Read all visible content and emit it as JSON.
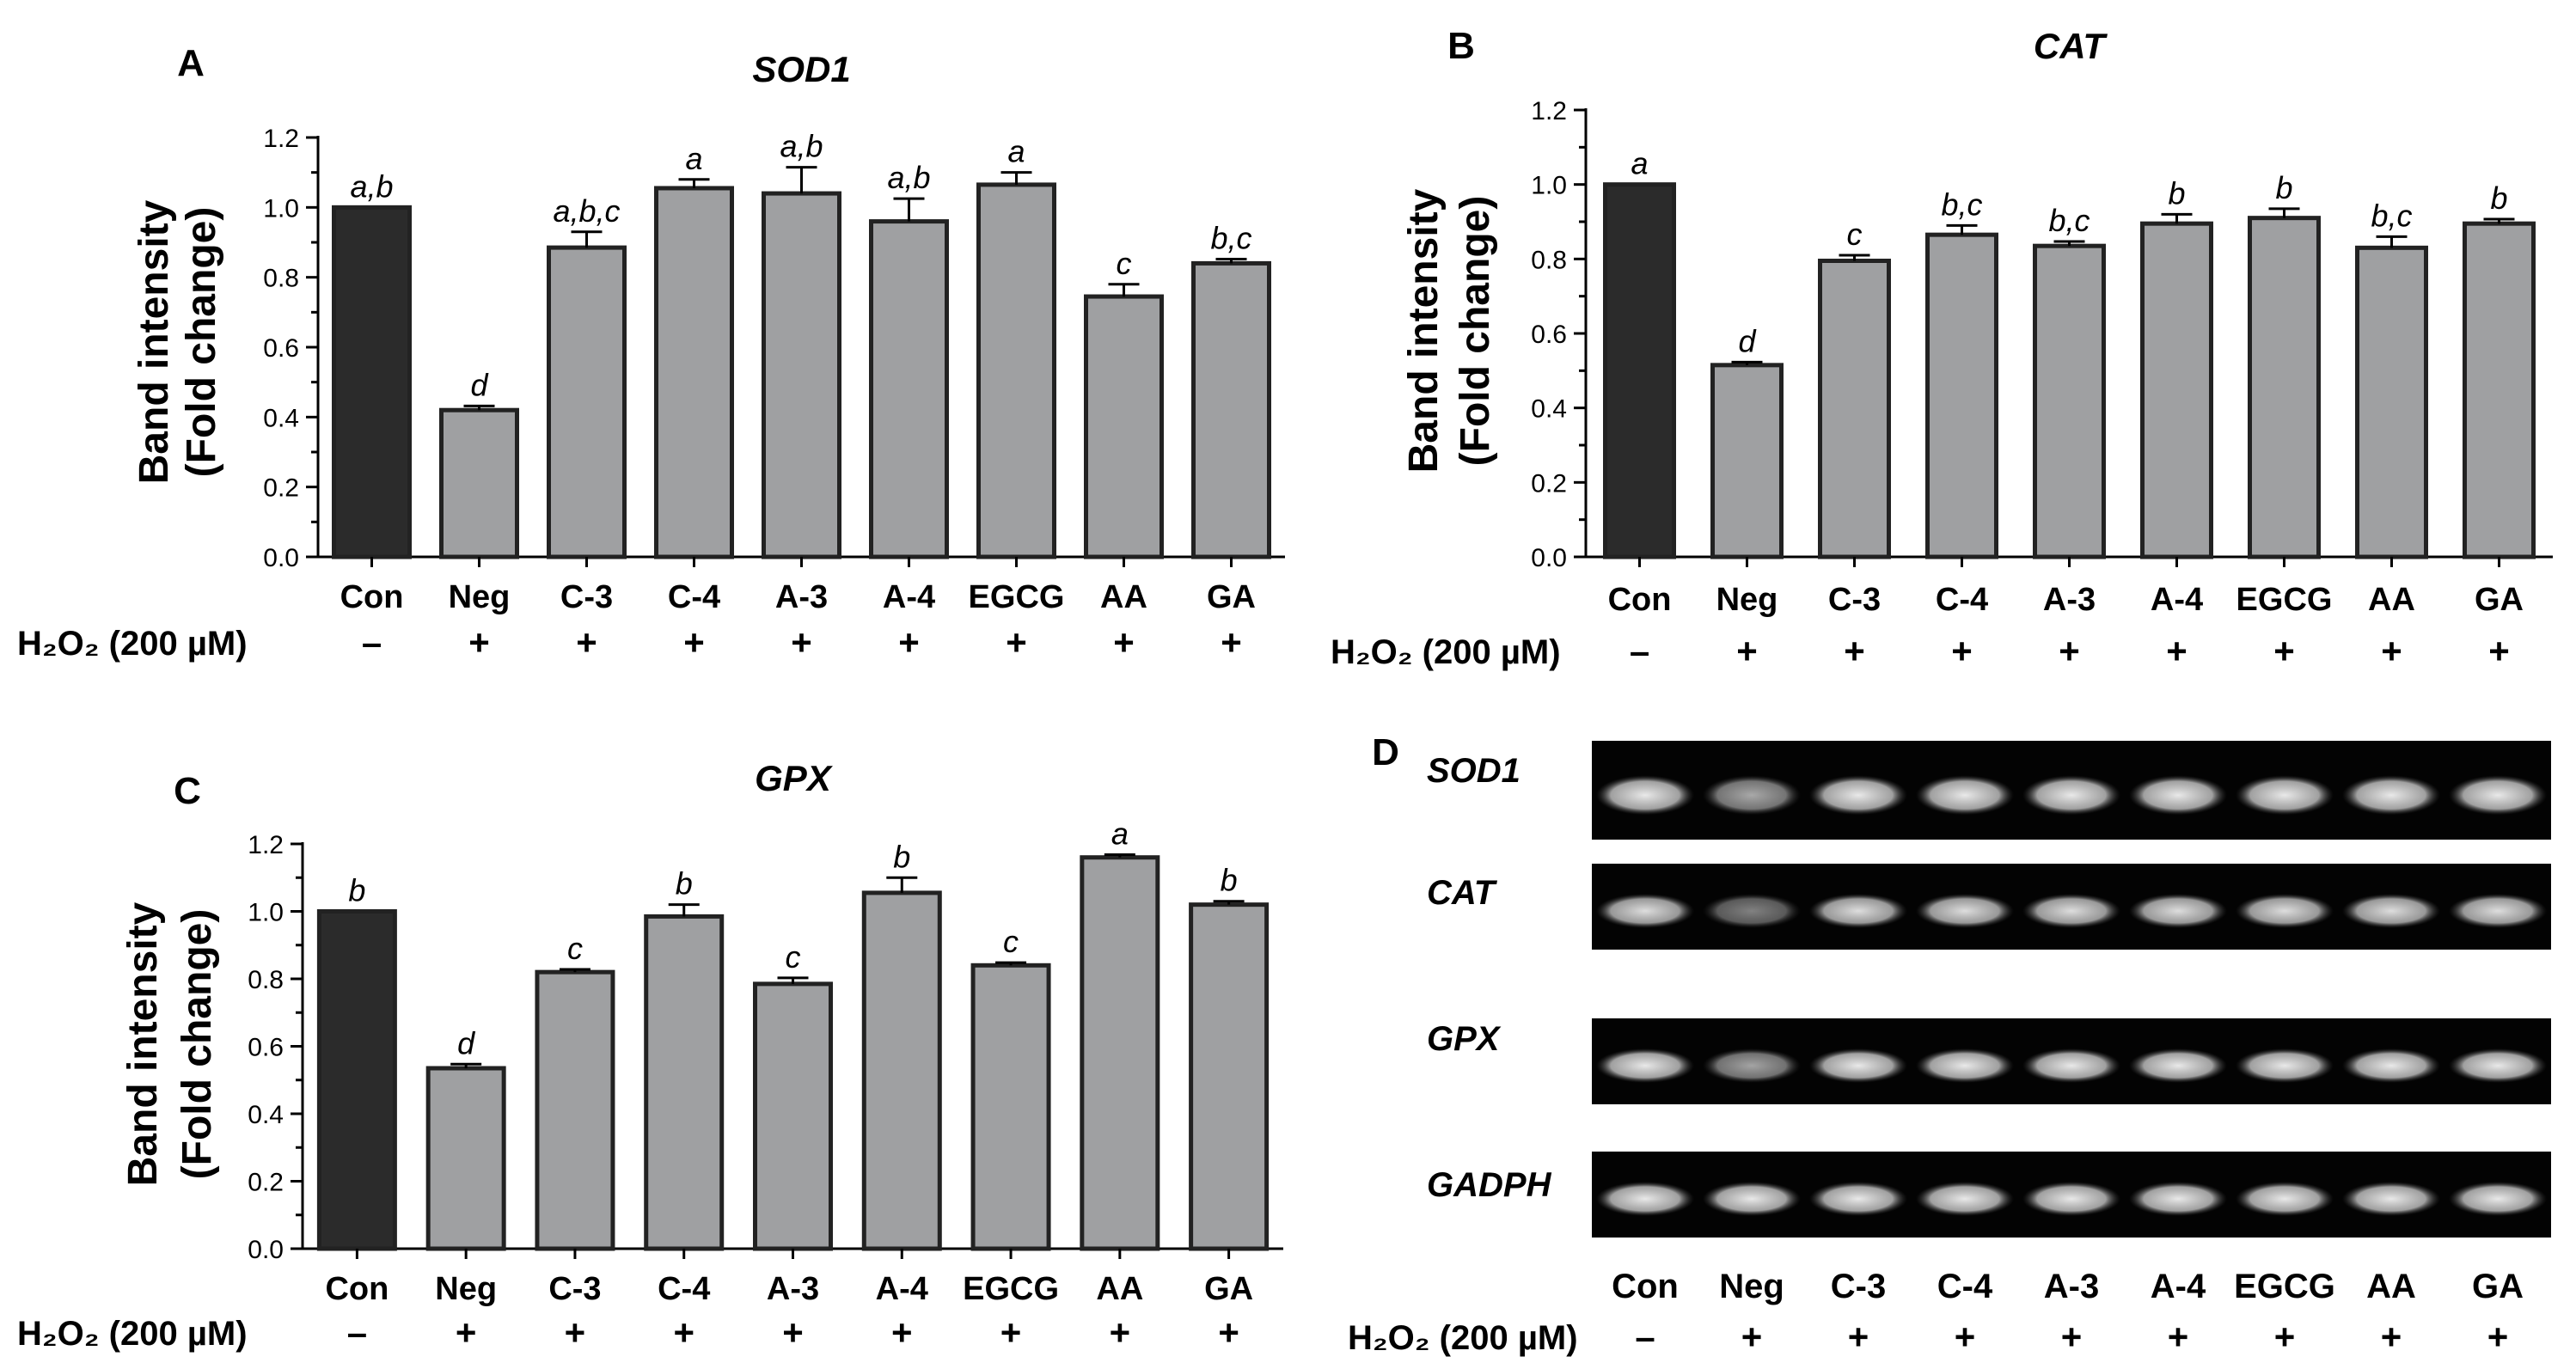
{
  "colors": {
    "control_bar": "#2b2b2b",
    "treatment_bar": "#9fa0a2",
    "bar_edge": "#222222",
    "axis": "#000000",
    "gel_background": "#030303",
    "band": "#e9e9e9"
  },
  "treatment_label": "H₂O₂ (200 µM)",
  "gel_panel": {
    "letter": "D",
    "genes": [
      "SOD1",
      "CAT",
      "GPX",
      "GADPH"
    ],
    "lanes": [
      "Con",
      "Neg",
      "C-3",
      "C-4",
      "A-3",
      "A-4",
      "EGCG",
      "AA",
      "GA"
    ],
    "h2o2": [
      "–",
      "+",
      "+",
      "+",
      "+",
      "+",
      "+",
      "+",
      "+"
    ],
    "band_strength": [
      [
        1.0,
        0.72,
        1.0,
        1.0,
        1.0,
        1.0,
        1.0,
        1.0,
        1.0
      ],
      [
        0.95,
        0.55,
        0.95,
        0.95,
        0.95,
        0.95,
        0.95,
        0.95,
        0.95
      ],
      [
        1.0,
        0.7,
        1.0,
        1.0,
        1.0,
        1.0,
        1.0,
        1.0,
        1.0
      ],
      [
        1.0,
        1.0,
        1.0,
        1.0,
        1.0,
        1.0,
        1.0,
        1.0,
        1.0
      ]
    ]
  },
  "chart_data": [
    {
      "panel": "A",
      "type": "bar",
      "title": "SOD1",
      "ylabel_line1": "Band  intensity",
      "ylabel_line2": "(Fold change)",
      "xlabel": "",
      "categories": [
        "Con",
        "Neg",
        "C-3",
        "C-4",
        "A-3",
        "A-4",
        "EGCG",
        "AA",
        "GA"
      ],
      "values": [
        1.0,
        0.42,
        0.885,
        1.055,
        1.04,
        0.96,
        1.065,
        0.745,
        0.84
      ],
      "errors": [
        0.0,
        0.012,
        0.045,
        0.025,
        0.075,
        0.065,
        0.035,
        0.035,
        0.012
      ],
      "significance": [
        "a,b",
        "d",
        "a,b,c",
        "a",
        "a,b",
        "a,b",
        "a",
        "c",
        "b,c"
      ],
      "h2o2": [
        "–",
        "+",
        "+",
        "+",
        "+",
        "+",
        "+",
        "+",
        "+"
      ],
      "ylim": [
        0,
        1.2
      ],
      "yticks": [
        "0.0",
        "0.2",
        "0.4",
        "0.6",
        "0.8",
        "1.0",
        "1.2"
      ],
      "grid": false
    },
    {
      "panel": "B",
      "type": "bar",
      "title": "CAT",
      "ylabel_line1": "Band  intensity",
      "ylabel_line2": "(Fold change)",
      "xlabel": "",
      "categories": [
        "Con",
        "Neg",
        "C-3",
        "C-4",
        "A-3",
        "A-4",
        "EGCG",
        "AA",
        "GA"
      ],
      "values": [
        1.0,
        0.515,
        0.795,
        0.865,
        0.835,
        0.895,
        0.91,
        0.83,
        0.895
      ],
      "errors": [
        0.0,
        0.008,
        0.015,
        0.025,
        0.012,
        0.025,
        0.025,
        0.03,
        0.012
      ],
      "significance": [
        "a",
        "d",
        "c",
        "b,c",
        "b,c",
        "b",
        "b",
        "b,c",
        "b"
      ],
      "h2o2": [
        "–",
        "+",
        "+",
        "+",
        "+",
        "+",
        "+",
        "+",
        "+"
      ],
      "ylim": [
        0,
        1.2
      ],
      "yticks": [
        "0.0",
        "0.2",
        "0.4",
        "0.6",
        "0.8",
        "1.0",
        "1.2"
      ],
      "grid": false
    },
    {
      "panel": "C",
      "type": "bar",
      "title": "GPX",
      "ylabel_line1": "Band  intensity",
      "ylabel_line2": "(Fold change)",
      "xlabel": "",
      "categories": [
        "Con",
        "Neg",
        "C-3",
        "C-4",
        "A-3",
        "A-4",
        "EGCG",
        "AA",
        "GA"
      ],
      "values": [
        1.0,
        0.535,
        0.82,
        0.985,
        0.785,
        1.055,
        0.84,
        1.16,
        1.02
      ],
      "errors": [
        0.0,
        0.012,
        0.008,
        0.035,
        0.018,
        0.045,
        0.008,
        0.008,
        0.01
      ],
      "significance": [
        "b",
        "d",
        "c",
        "b",
        "c",
        "b",
        "c",
        "a",
        "b"
      ],
      "h2o2": [
        "–",
        "+",
        "+",
        "+",
        "+",
        "+",
        "+",
        "+",
        "+"
      ],
      "ylim": [
        0,
        1.2
      ],
      "yticks": [
        "0.0",
        "0.2",
        "0.4",
        "0.6",
        "0.8",
        "1.0",
        "1.2"
      ],
      "grid": false
    }
  ]
}
